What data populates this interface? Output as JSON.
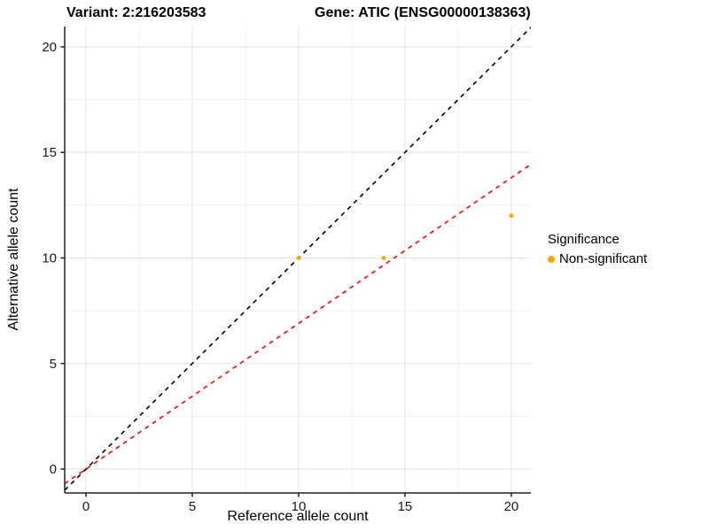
{
  "title": {
    "left": "Variant: 2:216203583",
    "right": "Gene: ATIC (ENSG00000138363)"
  },
  "chart_data": {
    "type": "scatter",
    "title": "Variant: 2:216203583 — Gene: ATIC (ENSG00000138363)",
    "xlabel": "Reference allele count",
    "ylabel": "Alternative allele count",
    "xlim": [
      -1,
      20.92
    ],
    "ylim": [
      -1.13,
      20.96
    ],
    "x_ticks": [
      0,
      5,
      10,
      15,
      20
    ],
    "y_ticks": [
      0,
      5,
      10,
      15,
      20
    ],
    "grid": {
      "step": 2.5,
      "major_every": 5,
      "major_color": "#e3e3e3",
      "minor_color": "#f0f0f0"
    },
    "axis_line_color": "#222222",
    "series": [
      {
        "name": "Non-significant",
        "color": "#FFA500",
        "point_radius": 2.5,
        "points": [
          {
            "x": 10,
            "y": 10
          },
          {
            "x": 14,
            "y": 10
          },
          {
            "x": 20,
            "y": 12
          }
        ]
      }
    ],
    "reference_lines": [
      {
        "name": "identity-line",
        "slope": 1,
        "intercept": 0,
        "color": "#000000",
        "style": "dashed"
      },
      {
        "name": "fit-line",
        "slope": 0.69,
        "intercept": 0,
        "color": "#ff0000",
        "style": "dashed"
      }
    ],
    "legend": {
      "title": "Significance",
      "position": "right",
      "items": [
        {
          "label": "Non-significant",
          "color": "#FFA500"
        }
      ]
    }
  }
}
